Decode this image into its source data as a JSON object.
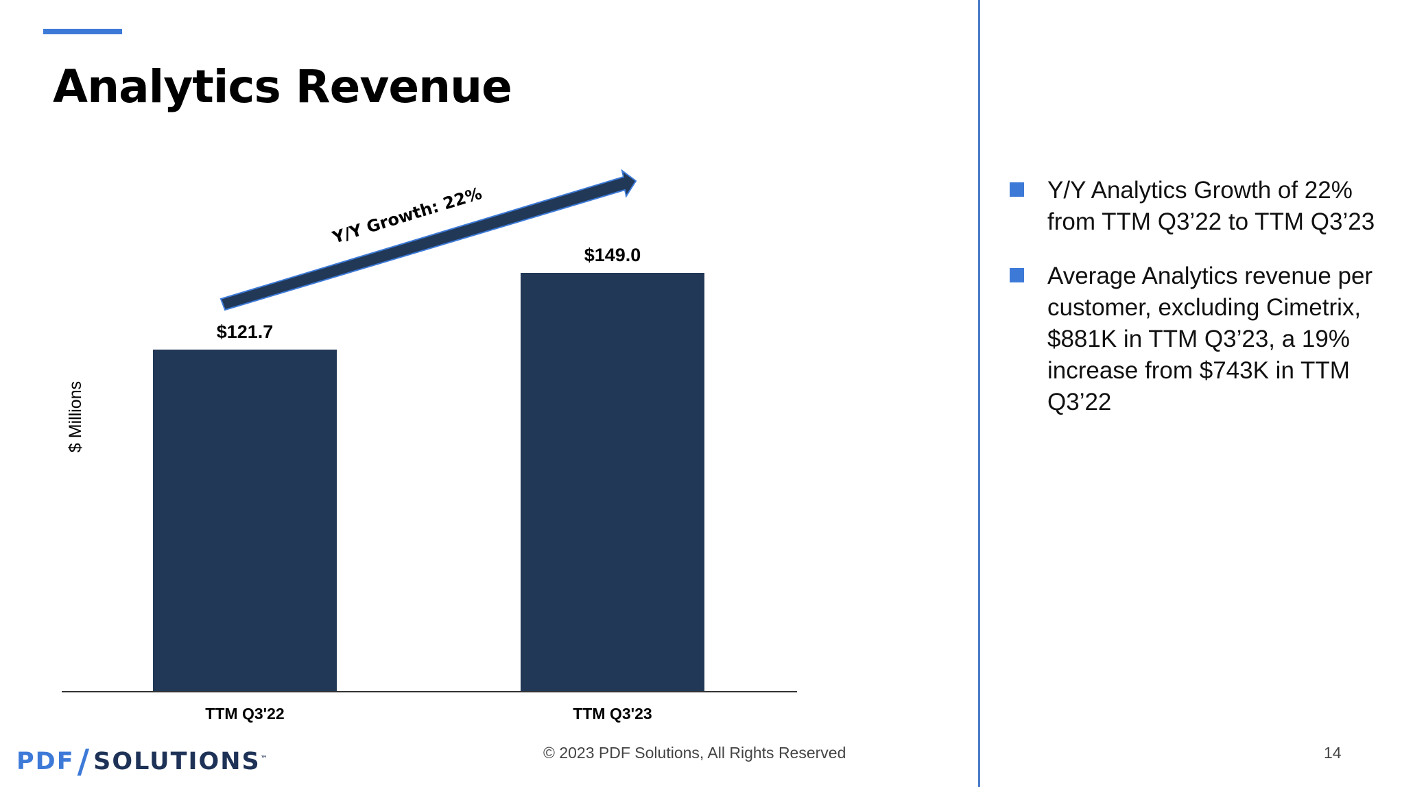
{
  "slide": {
    "title": "Analytics Revenue",
    "copyright": "© 2023 PDF Solutions, All Rights Reserved",
    "page_number": "14",
    "logo": {
      "part1": "PDF",
      "part2": "SOLUTIONS",
      "tm": "™"
    },
    "colors": {
      "accent": "#3d7ad8",
      "bar": "#213856",
      "divider": "#4a7cc9"
    }
  },
  "bullets": [
    {
      "text": "Y/Y Analytics Growth of 22% from TTM Q3’22 to TTM Q3’23"
    },
    {
      "text": "Average Analytics revenue per customer, excluding Cimetrix, $881K in TTM Q3’23, a 19% increase from $743K in TTM Q3’22"
    }
  ],
  "chart_data": {
    "type": "bar",
    "categories": [
      "TTM Q3'22",
      "TTM Q3'23"
    ],
    "values": [
      121.7,
      149.0
    ],
    "value_labels": [
      "$121.7",
      "$149.0"
    ],
    "ylabel": "$ Millions",
    "ylim": [
      0,
      149.0
    ],
    "annotation": "Y/Y Growth: 22%",
    "bar_color": "#213856",
    "grid": false
  }
}
